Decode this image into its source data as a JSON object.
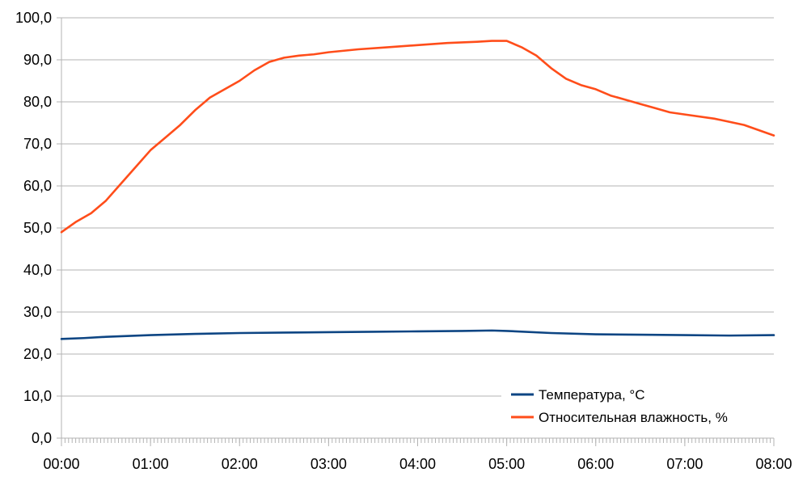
{
  "chart_data": {
    "type": "line",
    "title": "",
    "xlabel": "",
    "ylabel": "",
    "ylim": [
      0,
      100
    ],
    "y_ticks": [
      "0,0",
      "10,0",
      "20,0",
      "30,0",
      "40,0",
      "50,0",
      "60,0",
      "70,0",
      "80,0",
      "90,0",
      "100,0"
    ],
    "x_ticks": [
      "00:00",
      "01:00",
      "02:00",
      "03:00",
      "04:00",
      "05:00",
      "06:00",
      "07:00",
      "08:00"
    ],
    "grid": "horizontal",
    "legend_position": "bottom-right",
    "series": [
      {
        "name": "Температура, °C",
        "color": "#0d4583",
        "x": [
          "00:00",
          "00:15",
          "00:30",
          "01:00",
          "01:30",
          "02:00",
          "02:30",
          "03:00",
          "03:30",
          "04:00",
          "04:30",
          "04:50",
          "05:00",
          "05:30",
          "06:00",
          "06:30",
          "07:00",
          "07:30",
          "08:00"
        ],
        "values": [
          23.6,
          23.8,
          24.1,
          24.5,
          24.8,
          25.0,
          25.1,
          25.2,
          25.3,
          25.4,
          25.5,
          25.6,
          25.5,
          25.0,
          24.7,
          24.6,
          24.5,
          24.4,
          24.5
        ]
      },
      {
        "name": "Относительная влажность, %",
        "color": "#ff4d1a",
        "x": [
          "00:00",
          "00:10",
          "00:20",
          "00:30",
          "00:40",
          "00:50",
          "01:00",
          "01:10",
          "01:20",
          "01:30",
          "01:40",
          "01:50",
          "02:00",
          "02:10",
          "02:20",
          "02:30",
          "02:40",
          "02:50",
          "03:00",
          "03:20",
          "03:40",
          "04:00",
          "04:20",
          "04:40",
          "04:50",
          "05:00",
          "05:10",
          "05:20",
          "05:30",
          "05:40",
          "05:50",
          "06:00",
          "06:10",
          "06:20",
          "06:30",
          "06:40",
          "06:50",
          "07:00",
          "07:20",
          "07:40",
          "08:00"
        ],
        "values": [
          49.0,
          51.5,
          53.5,
          56.5,
          60.5,
          64.5,
          68.5,
          71.5,
          74.5,
          78.0,
          81.0,
          83.0,
          85.0,
          87.5,
          89.5,
          90.5,
          91.0,
          91.3,
          91.8,
          92.5,
          93.0,
          93.5,
          94.0,
          94.3,
          94.5,
          94.5,
          93.0,
          91.0,
          88.0,
          85.5,
          84.0,
          83.0,
          81.5,
          80.5,
          79.5,
          78.5,
          77.5,
          77.0,
          76.0,
          74.5,
          72.0
        ]
      }
    ]
  }
}
